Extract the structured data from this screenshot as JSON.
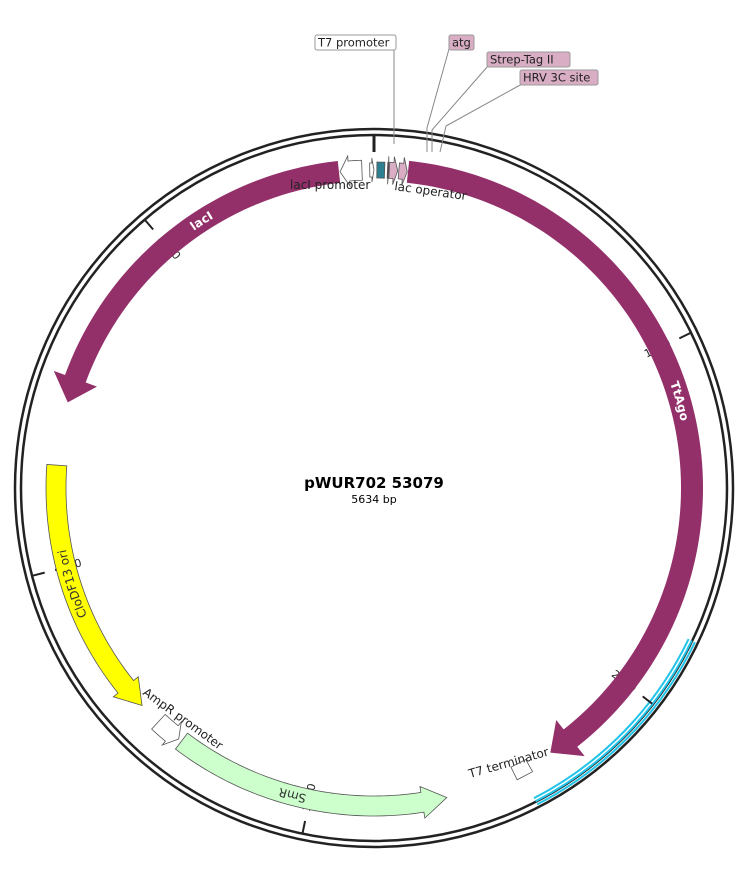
{
  "plasmid": {
    "name": "pWUR702 53079",
    "size_label": "5634 bp",
    "length": 5634
  },
  "colors": {
    "backbone": "#222222",
    "cds": "#93306a",
    "cds_label": "#ffffff",
    "ori": "#ffff00",
    "ori_label": "#333333",
    "selection": "#ccffcc",
    "promoter": "#ffffff",
    "tag": "#d9aec5",
    "operator_box": "#2d7f91",
    "highlight": "#21c4e8"
  },
  "highlight": {
    "start": 1810,
    "end": 2390
  },
  "ticks": [
    {
      "pos": 0,
      "label": ""
    },
    {
      "pos": 1000,
      "label": "1000"
    },
    {
      "pos": 2000,
      "label": "2000"
    },
    {
      "pos": 3000,
      "label": "3000"
    },
    {
      "pos": 4000,
      "label": "4000"
    },
    {
      "pos": 5000,
      "label": "5000"
    }
  ],
  "features": [
    {
      "id": "ttago",
      "name": "TtAgo",
      "start": 96,
      "end": 2290,
      "strand": 1,
      "type": "cds",
      "radius": 318,
      "width": 22,
      "label_pos": 1160,
      "label_inside": true
    },
    {
      "id": "laci",
      "name": "lacI",
      "start": 4470,
      "end": 5535,
      "strand": -1,
      "type": "cds",
      "radius": 318,
      "width": 22,
      "label_pos": 5120,
      "label_inside": true
    },
    {
      "id": "cloDF13",
      "name": "CloDF13 ori",
      "start": 3550,
      "end": 4290,
      "strand": -1,
      "type": "ori",
      "radius": 318,
      "width": 20,
      "label_pos": 3950,
      "label_inside": true
    },
    {
      "id": "smr",
      "name": "SmR",
      "start": 2610,
      "end": 3400,
      "strand": -1,
      "type": "selection",
      "radius": 318,
      "width": 20,
      "label_pos": 3050,
      "label_inside": true
    },
    {
      "id": "ampr_promoter",
      "name": "AmpR promoter",
      "start": 3410,
      "end": 3485,
      "strand": -1,
      "type": "promoter",
      "radius": 318,
      "width": 20,
      "label_pos": 3450,
      "label_inside": false
    },
    {
      "id": "laci_promoter",
      "name": "lacI promoter",
      "start": 5538,
      "end": 5600,
      "strand": -1,
      "type": "promoter",
      "radius": 318,
      "width": 20,
      "label_pos": 5575,
      "label_inside": false
    },
    {
      "id": "t7_promoter",
      "name": "T7 promoter",
      "start": 5622,
      "end": 5634,
      "strand": 1,
      "type": "promoter",
      "radius": 318,
      "width": 14,
      "label_pos": 5628,
      "label_inside": false,
      "callout": true
    },
    {
      "id": "lac_operator",
      "name": "lac operator",
      "start": 8,
      "end": 30,
      "strand": 0,
      "type": "operator",
      "radius": 318,
      "width": 16,
      "label_pos": 55,
      "label_inside": false
    },
    {
      "id": "atg",
      "name": "atg",
      "start": 38,
      "end": 42,
      "strand": 1,
      "type": "tag_small",
      "radius": 318,
      "width": 16,
      "label_pos": 40,
      "callout": true
    },
    {
      "id": "strep",
      "name": "Strep-Tag II",
      "start": 43,
      "end": 67,
      "strand": 1,
      "type": "tag",
      "radius": 318,
      "width": 16,
      "label_pos": 55,
      "callout": true
    },
    {
      "id": "hrv",
      "name": "HRV 3C site",
      "start": 70,
      "end": 94,
      "strand": 1,
      "type": "tag",
      "radius": 318,
      "width": 16,
      "label_pos": 82,
      "callout": true
    },
    {
      "id": "t7_terminator",
      "name": "T7 terminator",
      "start": 2360,
      "end": 2408,
      "strand": 0,
      "type": "terminator",
      "radius": 318,
      "width": 14,
      "label_pos": 2384,
      "label_inside": false
    }
  ],
  "labels": {
    "laci_promoter": "lacI promoter",
    "lac_operator": "lac operator",
    "ampr_promoter": "AmpR promoter",
    "t7_terminator": "T7 terminator"
  },
  "callouts": [
    {
      "text": "T7 promoter",
      "style": "plain"
    },
    {
      "text": "atg",
      "style": "tag"
    },
    {
      "text": "Strep-Tag II",
      "style": "tag"
    },
    {
      "text": "HRV 3C site",
      "style": "tag"
    }
  ]
}
